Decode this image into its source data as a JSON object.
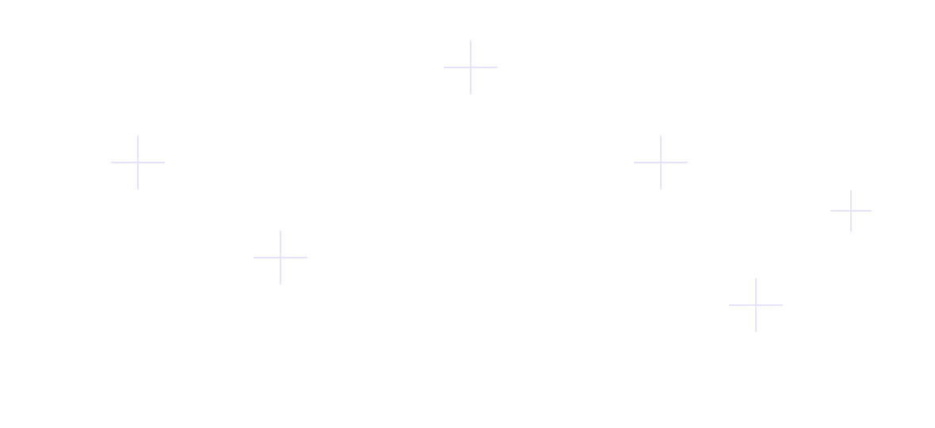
{
  "background_color": "#ffffff",
  "decoration": {
    "icon": "plus-sparkle",
    "color": "#e2e2fc"
  }
}
